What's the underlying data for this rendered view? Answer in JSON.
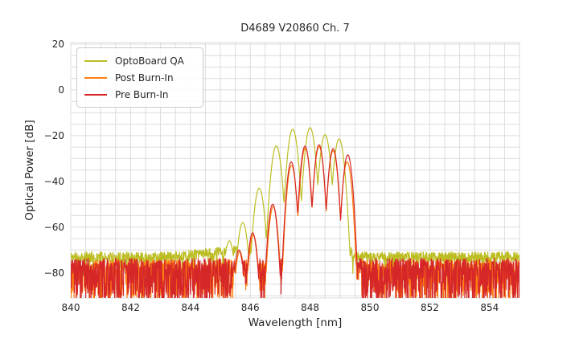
{
  "chart_data": {
    "type": "line",
    "title": "D4689 V20860 Ch. 7",
    "xlabel": "Wavelength [nm]",
    "ylabel": "Optical Power [dB]",
    "xlim": [
      840,
      855
    ],
    "ylim": [
      -91,
      20.7
    ],
    "x_major_ticks": [
      840,
      842,
      844,
      846,
      848,
      850,
      852,
      854
    ],
    "y_major_ticks": [
      20,
      0,
      -20,
      -40,
      -60,
      -80
    ],
    "x_minor_step": 0.5,
    "y_minor_step": 5,
    "grid": true,
    "grid_color": "#dcdcdc",
    "legend_position": "upper left",
    "sample_step_nm": 0.01,
    "series": [
      {
        "name": "OptoBoard QA",
        "color": "#bcbd22",
        "seed": 11,
        "noise_floor_db": -73.0,
        "noise_jitter_db": 2.2,
        "deep_spike_prob": 0.1,
        "deep_spike_extra_db": 5,
        "floor_ramp": {
          "from_nm": 843.3,
          "to_nm": 845.4,
          "rise_db": 2.5,
          "until_nm": 849.4
        },
        "mode_width_k_db_per_nm2": 380,
        "modes_nm_db": [
          [
            845.3,
            -66.0
          ],
          [
            845.75,
            -58.0
          ],
          [
            846.3,
            -43.0
          ],
          [
            846.87,
            -24.5
          ],
          [
            847.42,
            -17.2
          ],
          [
            848.0,
            -16.5
          ],
          [
            848.5,
            -19.6
          ],
          [
            848.97,
            -21.5
          ]
        ]
      },
      {
        "name": "Post Burn-In",
        "color": "#ff7f0e",
        "seed": 22,
        "noise_floor_db": -76.8,
        "noise_jitter_db": 2.6,
        "deep_spike_prob": 0.42,
        "deep_spike_extra_db": 14,
        "floor_ramp": null,
        "mode_width_k_db_per_nm2": 500,
        "modes_nm_db": [
          [
            845.65,
            -70.5
          ],
          [
            846.1,
            -63.5
          ],
          [
            846.77,
            -51.0
          ],
          [
            847.38,
            -33.0
          ],
          [
            847.84,
            -25.4
          ],
          [
            848.3,
            -24.8
          ],
          [
            848.77,
            -26.6
          ],
          [
            849.24,
            -31.5
          ]
        ]
      },
      {
        "name": "Pre Burn-In",
        "color": "#d62728",
        "seed": 33,
        "noise_floor_db": -76.3,
        "noise_jitter_db": 2.6,
        "deep_spike_prob": 0.5,
        "deep_spike_extra_db": 15,
        "floor_ramp": null,
        "mode_width_k_db_per_nm2": 500,
        "modes_nm_db": [
          [
            845.62,
            -70.0
          ],
          [
            846.08,
            -62.5
          ],
          [
            846.75,
            -50.0
          ],
          [
            847.37,
            -31.5
          ],
          [
            847.83,
            -24.6
          ],
          [
            848.3,
            -24.0
          ],
          [
            848.77,
            -25.7
          ],
          [
            849.26,
            -28.4
          ]
        ]
      }
    ]
  }
}
